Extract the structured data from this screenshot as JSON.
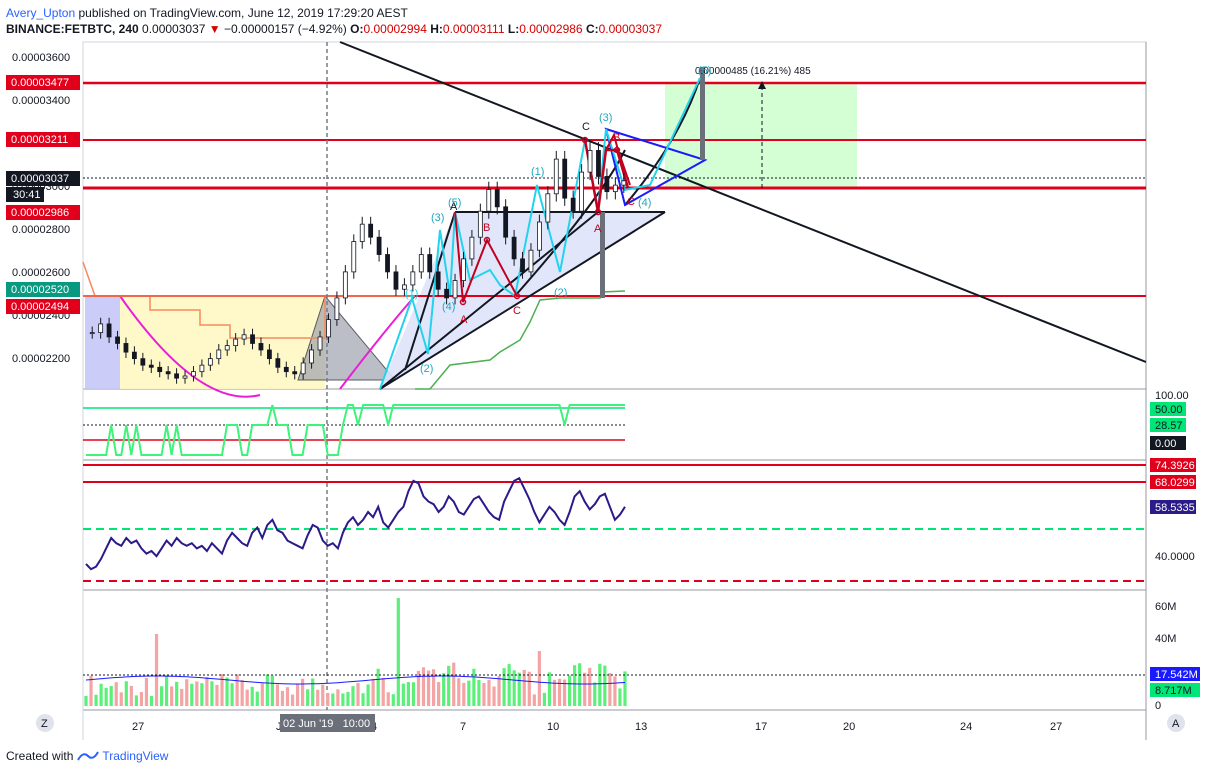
{
  "header": {
    "user": "Avery_Upton",
    "published": "published on TradingView.com, June 12, 2019 17:29:20 AEST",
    "symbol": "BINANCE:FETBTC, 240",
    "last": "0.00003037",
    "change": "−0.00000157 (−4.92%)",
    "o_label": "O:",
    "o": "0.00002994",
    "h_label": "H:",
    "h": "0.00003111",
    "l_label": "L:",
    "l": "0.00002986",
    "c_label": "C:",
    "c": "0.00003037"
  },
  "footer": {
    "created_with": "Created with",
    "brand": "TradingView"
  },
  "colors": {
    "red_line": "#e0001b",
    "green_line": "#00e676",
    "blue_line": "#1a1aff",
    "cyan_wave": "#22d3ee",
    "dark_wave": "#b00020",
    "rsi_line": "#2a1a8a",
    "vol_up": "#5cf07a",
    "vol_down": "#f4a4a4",
    "target_box": "#cfffd0"
  },
  "chart_data": [
    {
      "type": "candlestick",
      "name": "price",
      "y_range": [
        2.08e-05,
        3.68e-05
      ],
      "y_ticks": [
        "0.00003600",
        "0.00003400",
        "0.00003000",
        "0.00002800",
        "0.00002600",
        "0.00002400",
        "0.00002200"
      ],
      "x_tick_labels": [
        "27",
        "Jun",
        "4",
        "7",
        "10",
        "13",
        "17",
        "20",
        "24",
        "27"
      ],
      "crosshair_label": "02 Jun '19   10:00",
      "price_labels": [
        {
          "value": "0.00003477",
          "kind": "red"
        },
        {
          "value": "0.00003211",
          "kind": "red"
        },
        {
          "value": "0.00003037",
          "kind": "black"
        },
        {
          "value": "30:41",
          "kind": "black"
        },
        {
          "value": "0.00002986",
          "kind": "red"
        },
        {
          "value": "0.00002520",
          "kind": "green"
        },
        {
          "value": "0.00002494",
          "kind": "red"
        }
      ],
      "horizontal_levels": [
        3.477e-05,
        3.211e-05,
        2.986e-05,
        2.494e-05
      ],
      "current_price": 3.037e-05,
      "target_annotation": "0.00000485 (16.21%) 485",
      "wave_labels": [
        "(1)",
        "(2)",
        "(3)",
        "(4)",
        "(5)",
        "(1)",
        "(2)",
        "(3)",
        "(4)",
        "(5)",
        "A",
        "B",
        "C",
        "A",
        "B",
        "C",
        "A",
        "B",
        "C"
      ],
      "closes": [
        2.34e-05,
        2.38e-05,
        2.32e-05,
        2.29e-05,
        2.25e-05,
        2.22e-05,
        2.19e-05,
        2.18e-05,
        2.16e-05,
        2.15e-05,
        2.13e-05,
        2.14e-05,
        2.16e-05,
        2.19e-05,
        2.22e-05,
        2.26e-05,
        2.28e-05,
        2.31e-05,
        2.33e-05,
        2.29e-05,
        2.26e-05,
        2.22e-05,
        2.18e-05,
        2.16e-05,
        2.15e-05,
        2.2e-05,
        2.26e-05,
        2.32e-05,
        2.4e-05,
        2.5e-05,
        2.62e-05,
        2.76e-05,
        2.84e-05,
        2.78e-05,
        2.7e-05,
        2.62e-05,
        2.54e-05,
        2.56e-05,
        2.62e-05,
        2.7e-05,
        2.62e-05,
        2.54e-05,
        2.5e-05,
        2.58e-05,
        2.68e-05,
        2.78e-05,
        2.9e-05,
        3e-05,
        2.92e-05,
        2.78e-05,
        2.68e-05,
        2.62e-05,
        2.72e-05,
        2.85e-05,
        2.98e-05,
        3.14e-05,
        2.96e-05,
        2.9e-05,
        3.08e-05,
        3.18e-05,
        3.06e-05,
        2.99e-05,
        3.02e-05,
        3.04e-05
      ]
    },
    {
      "type": "line",
      "name": "stochastic_rsi",
      "y_ticks": [
        "100.00",
        "50.00",
        "28.57",
        "0.00"
      ],
      "value_labels": [
        {
          "value": "50.00",
          "kind": "green"
        },
        {
          "value": "28.57",
          "kind": "green"
        },
        {
          "value": "0.00",
          "kind": "black"
        }
      ],
      "levels": [
        50,
        28.57
      ]
    },
    {
      "type": "line",
      "name": "rsi",
      "y_range": [
        30,
        80
      ],
      "y_ticks": [
        "40.0000"
      ],
      "value_labels": [
        {
          "value": "74.3926",
          "kind": "red"
        },
        {
          "value": "68.0299",
          "kind": "red"
        },
        {
          "value": "58.5335",
          "kind": "blue"
        }
      ],
      "levels": [
        74.3926,
        68.0299,
        50,
        32
      ],
      "values": [
        40,
        38,
        39,
        42,
        46,
        50,
        48,
        47,
        50,
        48,
        49,
        46,
        44,
        45,
        43,
        46,
        49,
        47,
        50,
        48,
        47,
        48,
        46,
        47,
        45,
        48,
        46,
        44,
        49,
        52,
        50,
        48,
        47,
        52,
        54,
        50,
        55,
        57,
        53,
        52,
        49,
        48,
        47,
        46,
        51,
        55,
        54,
        49,
        47,
        48,
        46,
        52,
        56,
        58,
        55,
        57,
        60,
        58,
        62,
        56,
        54,
        57,
        60,
        62,
        68,
        72,
        71,
        66,
        64,
        63,
        60,
        62,
        66,
        64,
        60,
        59,
        62,
        65,
        66,
        63,
        60,
        58,
        57,
        64,
        68,
        72,
        73,
        69,
        65,
        60,
        56,
        59,
        62,
        60,
        57,
        55,
        60,
        66,
        68,
        64,
        61,
        63,
        66,
        67,
        62,
        57,
        59,
        62
      ]
    },
    {
      "type": "bar",
      "name": "volume",
      "y_ticks": [
        "60M",
        "40M",
        "20M",
        "0"
      ],
      "value_labels": [
        {
          "value": "17.542M",
          "kind": "blue"
        },
        {
          "value": "8.717M",
          "kind": "green"
        }
      ]
    }
  ],
  "axis_buttons": {
    "left": "Z",
    "right": "A"
  }
}
